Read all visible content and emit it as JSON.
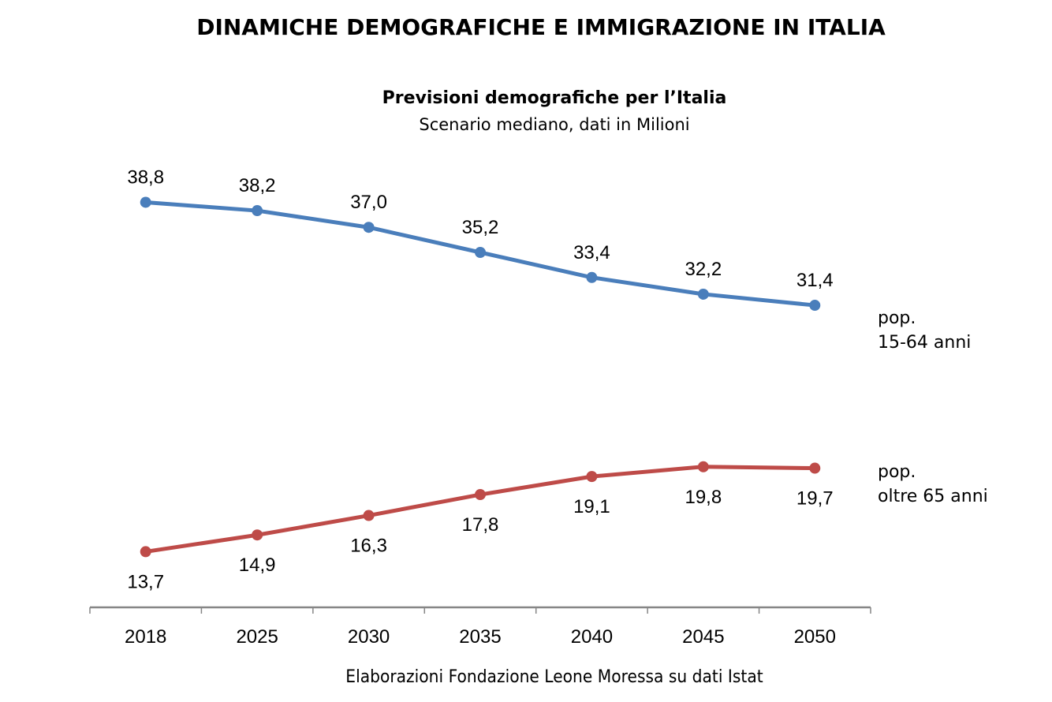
{
  "header": {
    "main_title": "DINAMICHE DEMOGRAFICHE E IMMIGRAZIONE IN ITALIA"
  },
  "footer": {
    "source": "Elaborazioni Fondazione Leone Moressa su dati Istat"
  },
  "chart_data": {
    "type": "line",
    "title": "Previsioni demografiche per l’Italia",
    "subtitle": "Scenario mediano, dati in Milioni",
    "xlabel": "",
    "ylabel": "",
    "categories": [
      "2018",
      "2025",
      "2030",
      "2035",
      "2040",
      "2045",
      "2050"
    ],
    "series": [
      {
        "name": "pop. 15-64 anni",
        "label_lines": [
          "pop.",
          "15-64 anni"
        ],
        "color": "#4a7ebb",
        "values": [
          38.8,
          38.2,
          37.0,
          35.2,
          33.4,
          32.2,
          31.4
        ],
        "value_labels": [
          "38,8",
          "38,2",
          "37,0",
          "35,2",
          "33,4",
          "32,2",
          "31,4"
        ],
        "label_position": "above"
      },
      {
        "name": "pop. oltre 65 anni",
        "label_lines": [
          "pop.",
          "oltre 65 anni"
        ],
        "color": "#be4b48",
        "values": [
          13.7,
          14.9,
          16.3,
          17.8,
          19.1,
          19.8,
          19.7
        ],
        "value_labels": [
          "13,7",
          "14,9",
          "16,3",
          "17,8",
          "19,1",
          "19,8",
          "19,7"
        ],
        "label_position": "below"
      }
    ],
    "ylim": [
      9.7,
      42
    ],
    "grid": false,
    "y_axis_visible": false,
    "legend": "inline-right"
  }
}
